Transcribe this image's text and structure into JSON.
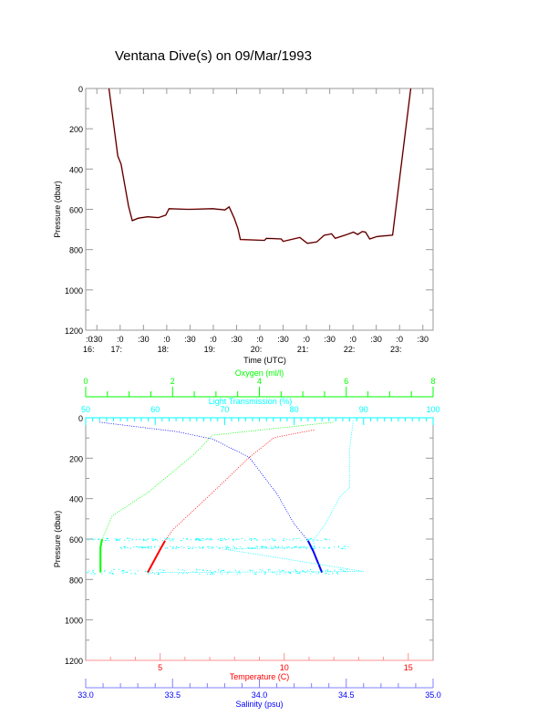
{
  "chart_data": [
    {
      "type": "line",
      "title": "Ventana Dive(s) on 09/Mar/1993",
      "xlabel": "Time (UTC)",
      "ylabel": "Pressure (dbar)",
      "xlim_hours": [
        16.26,
        23.72
      ],
      "ylim": [
        1200,
        0
      ],
      "yticks": [
        "0",
        "200",
        "400",
        "600",
        "800",
        "1000",
        "1200"
      ],
      "xtick_labels": [
        {
          "t": 16.26,
          "top": ":0",
          "bottom": "16:"
        },
        {
          "t": 16.5,
          "top": ":30",
          "bottom": ""
        },
        {
          "t": 17.0,
          "top": ":0",
          "bottom": "17:"
        },
        {
          "t": 17.5,
          "top": ":30",
          "bottom": ""
        },
        {
          "t": 18.0,
          "top": ":0",
          "bottom": "18:"
        },
        {
          "t": 18.5,
          "top": ":30",
          "bottom": ""
        },
        {
          "t": 19.0,
          "top": ":0",
          "bottom": "19:"
        },
        {
          "t": 19.5,
          "top": ":30",
          "bottom": ""
        },
        {
          "t": 20.0,
          "top": ":0",
          "bottom": "20:"
        },
        {
          "t": 20.5,
          "top": ":30",
          "bottom": ""
        },
        {
          "t": 21.0,
          "top": ":0",
          "bottom": "21:"
        },
        {
          "t": 21.5,
          "top": ":30",
          "bottom": ""
        },
        {
          "t": 22.0,
          "top": ":0",
          "bottom": "22:"
        },
        {
          "t": 22.5,
          "top": ":30",
          "bottom": ""
        },
        {
          "t": 23.0,
          "top": ":0",
          "bottom": "23:"
        },
        {
          "t": 23.5,
          "top": ":30",
          "bottom": ""
        }
      ],
      "series": [
        {
          "name": "Dive pressure",
          "color": "#000000",
          "points": [
            [
              16.76,
              0
            ],
            [
              16.95,
              335
            ],
            [
              17.02,
              376
            ],
            [
              17.18,
              585
            ],
            [
              17.26,
              656
            ],
            [
              17.39,
              644
            ],
            [
              17.59,
              637
            ],
            [
              17.82,
              641
            ],
            [
              17.98,
              629
            ],
            [
              18.05,
              597
            ],
            [
              18.47,
              600
            ],
            [
              18.99,
              597
            ],
            [
              19.25,
              603
            ],
            [
              19.34,
              588
            ],
            [
              19.45,
              644
            ],
            [
              19.53,
              696
            ],
            [
              19.58,
              750
            ],
            [
              20.1,
              754
            ],
            [
              20.14,
              744
            ],
            [
              20.46,
              747
            ],
            [
              20.5,
              759
            ],
            [
              20.86,
              740
            ],
            [
              21.02,
              769
            ],
            [
              21.22,
              762
            ],
            [
              21.38,
              729
            ],
            [
              21.54,
              722
            ],
            [
              21.62,
              744
            ],
            [
              21.87,
              725
            ],
            [
              22.01,
              713
            ],
            [
              22.1,
              725
            ],
            [
              22.2,
              710
            ],
            [
              22.27,
              713
            ],
            [
              22.36,
              747
            ],
            [
              22.52,
              735
            ],
            [
              22.85,
              728
            ],
            [
              23.24,
              0
            ]
          ]
        }
      ]
    },
    {
      "type": "line",
      "ylabel": "Pressure (dbar)",
      "ylim": [
        1200,
        0
      ],
      "yticks": [
        "0",
        "200",
        "400",
        "600",
        "800",
        "1000",
        "1200"
      ],
      "axes": {
        "oxygen": {
          "label": "Oxygen (ml/l)",
          "range": [
            0,
            8
          ],
          "ticks": [
            "0",
            "2",
            "4",
            "6",
            "8"
          ],
          "color": "#00ff00"
        },
        "light": {
          "label": "Light Transmission (%)",
          "range": [
            50,
            100
          ],
          "ticks": [
            "50",
            "60",
            "70",
            "80",
            "90",
            "100"
          ],
          "color": "#00ffff"
        },
        "temperature": {
          "label": "Temperature (C)",
          "range": [
            2,
            16
          ],
          "ticks": [
            "5",
            "10",
            "15"
          ],
          "color": "#ff0000"
        },
        "salinity": {
          "label": "Salinity (psu)",
          "range": [
            33.0,
            35.0
          ],
          "ticks": [
            "33.0",
            "33.5",
            "34.0",
            "34.5",
            "35.0"
          ],
          "color": "#0000ff"
        }
      },
      "series": [
        {
          "name": "Oxygen",
          "axis": "oxygen",
          "points": [
            [
              5.7,
              22
            ],
            [
              2.92,
              86
            ],
            [
              2.5,
              180
            ],
            [
              1.43,
              370
            ],
            [
              0.61,
              485
            ],
            [
              0.38,
              600
            ],
            [
              0.34,
              640
            ],
            [
              0.34,
              765
            ]
          ]
        },
        {
          "name": "Temperature",
          "axis": "temperature",
          "points": [
            [
              11.2,
              60
            ],
            [
              9.6,
              98
            ],
            [
              8.6,
              195
            ],
            [
              7.0,
              383
            ],
            [
              5.5,
              555
            ],
            [
              5.2,
              608
            ],
            [
              5.0,
              652
            ],
            [
              4.5,
              765
            ]
          ]
        },
        {
          "name": "Salinity",
          "axis": "salinity",
          "points": [
            [
              33.08,
              22
            ],
            [
              33.52,
              68
            ],
            [
              33.73,
              105
            ],
            [
              33.94,
              195
            ],
            [
              34.1,
              375
            ],
            [
              34.2,
              525
            ],
            [
              34.28,
              608
            ],
            [
              34.31,
              660
            ],
            [
              34.36,
              765
            ]
          ]
        },
        {
          "name": "Light Transmission",
          "axis": "light",
          "points": [
            [
              88.5,
              15
            ],
            [
              88,
              150
            ],
            [
              88,
              345
            ],
            [
              86.6,
              390
            ],
            [
              84.5,
              525
            ],
            [
              82.7,
              608
            ],
            [
              83,
              640
            ],
            [
              70,
              650
            ],
            [
              90,
              760
            ],
            [
              60,
              765
            ]
          ]
        }
      ]
    }
  ]
}
